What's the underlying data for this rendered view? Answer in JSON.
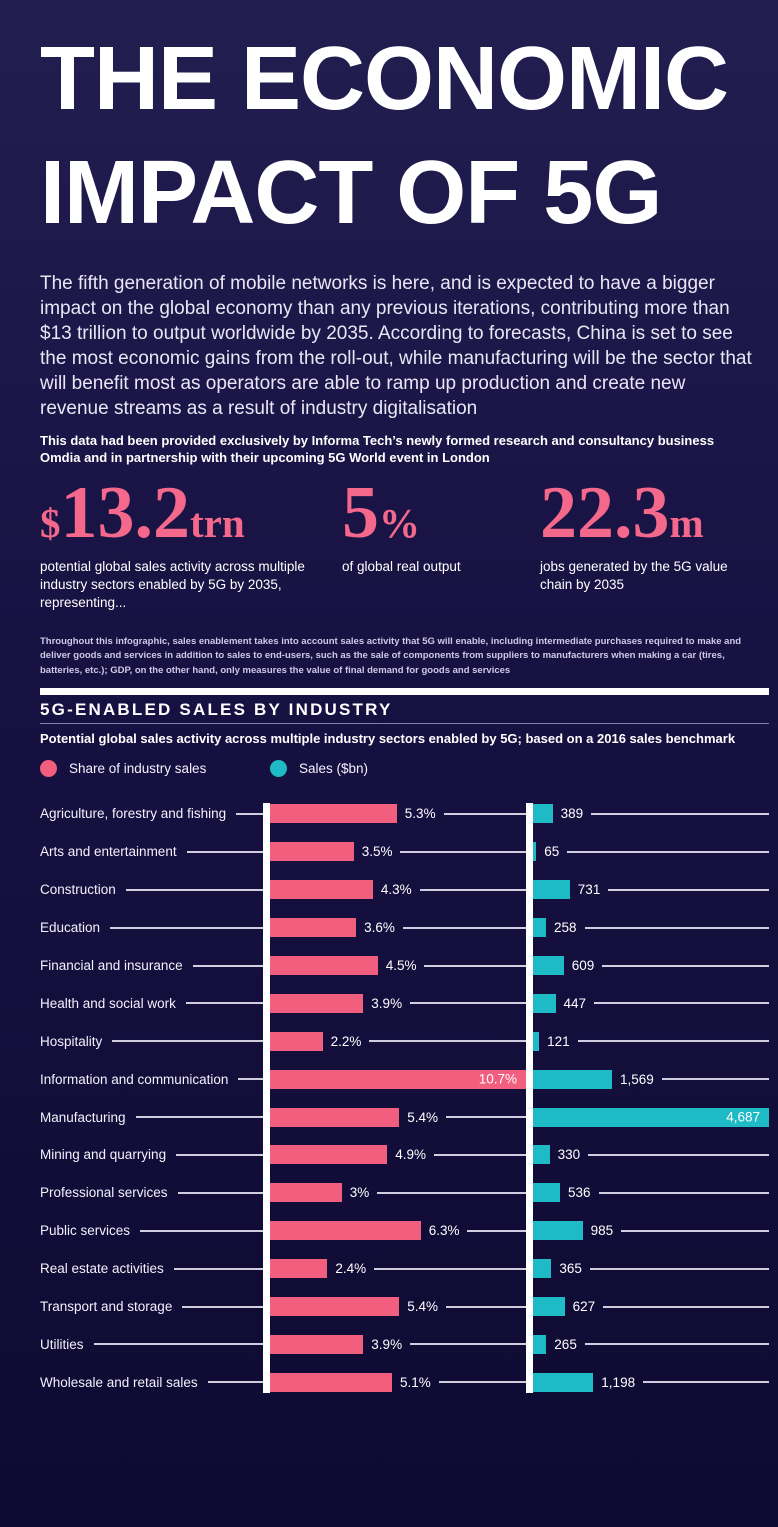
{
  "header": {
    "title_line1": "THE ECONOMIC",
    "title_line2": "IMPACT OF 5G",
    "intro": "The fifth generation of mobile networks is here, and is expected to have a bigger impact on the global economy than any previous iterations, contributing more than $13 trillion to output worldwide by 2035. According to forecasts, China is set to see the most economic gains from the roll-out, while manufacturing will be the sector that will benefit most as operators are able to ramp up production and create new revenue streams as a result of industry digitalisation",
    "source_note": "This data had been provided exclusively by Informa Tech’s newly formed research and consultancy business Omdia and in partnership with their upcoming 5G World event in London"
  },
  "stats": [
    {
      "prefix": "$",
      "value": "13.2",
      "suffix": "trn",
      "caption": "potential global sales activity across multiple industry sectors enabled by 5G by 2035, representing..."
    },
    {
      "prefix": "",
      "value": "5",
      "suffix": "%",
      "caption": "of global real output"
    },
    {
      "prefix": "",
      "value": "22.3",
      "suffix": "m",
      "caption": "jobs generated by the 5G value chain by 2035"
    }
  ],
  "footnote": "Throughout this infographic, sales enablement takes into account sales activity that 5G will enable, including intermediate purchases required to make and deliver goods and services in addition to sales to end-users, such as the sale of components from suppliers to manufacturers when making a car (tires, batteries, etc.); GDP, on the other hand, only measures the value of final demand for goods and services",
  "section": {
    "title": "5G-ENABLED SALES BY INDUSTRY",
    "subtitle": "Potential global sales activity across multiple industry sectors enabled by 5G; based on a 2016 sales benchmark"
  },
  "colors": {
    "background_top": "#221e50",
    "background_bottom": "#0e0a31",
    "pink": "#f25e7e",
    "teal": "#1ebac6",
    "stat_pink": "#f4688c",
    "axis_white": "#ffffff"
  },
  "chart_data": {
    "type": "bar",
    "orientation": "horizontal",
    "title": "5G-ENABLED SALES BY INDUSTRY",
    "subtitle": "Potential global sales activity across multiple industry sectors enabled by 5G; based on a 2016 sales benchmark",
    "legend_position": "top",
    "grid": false,
    "categories": [
      "Agriculture, forestry and fishing",
      "Arts and entertainment",
      "Construction",
      "Education",
      "Financial and insurance",
      "Health and social work",
      "Hospitality",
      "Information and communication",
      "Manufacturing",
      "Mining and quarrying",
      "Professional services",
      "Public services",
      "Real estate activities",
      "Transport and storage",
      "Utilities",
      "Wholesale and retail sales"
    ],
    "series": [
      {
        "name": "Share of industry sales",
        "unit": "%",
        "color": "#f25e7e",
        "axis_max": 10.7,
        "values": [
          5.3,
          3.5,
          4.3,
          3.6,
          4.5,
          3.9,
          2.2,
          10.7,
          5.4,
          4.9,
          3,
          6.3,
          2.4,
          5.4,
          3.9,
          5.1
        ],
        "labels": [
          "5.3%",
          "3.5%",
          "4.3%",
          "3.6%",
          "4.5%",
          "3.9%",
          "2.2%",
          "10.7%",
          "5.4%",
          "4.9%",
          "3%",
          "6.3%",
          "2.4%",
          "5.4%",
          "3.9%",
          "5.1%"
        ]
      },
      {
        "name": "Sales ($bn)",
        "unit": "$bn",
        "color": "#1ebac6",
        "axis_max": 4687,
        "values": [
          389,
          65,
          731,
          258,
          609,
          447,
          121,
          1569,
          4687,
          330,
          536,
          985,
          365,
          627,
          265,
          1198
        ],
        "labels": [
          "389",
          "65",
          "731",
          "258",
          "609",
          "447",
          "121",
          "1,569",
          "4,687",
          "330",
          "536",
          "985",
          "365",
          "627",
          "265",
          "1,198"
        ]
      }
    ]
  }
}
